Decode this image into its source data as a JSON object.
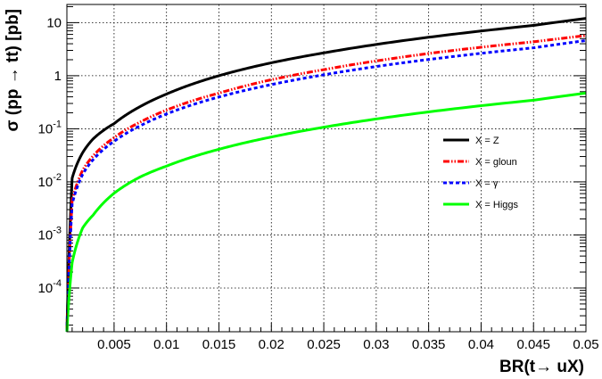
{
  "chart_data": {
    "type": "line",
    "title": "",
    "xlabel": "BR(t→ uX)",
    "ylabel": "σ (pp → tt) [pb]",
    "xlim": [
      0.0005,
      0.05
    ],
    "ylim": [
      1.5e-05,
      22
    ],
    "yscale": "log",
    "grid": true,
    "legend_position": "right",
    "x_ticks": [
      {
        "value": 0.005,
        "label": "0.005"
      },
      {
        "value": 0.01,
        "label": "0.01"
      },
      {
        "value": 0.015,
        "label": "0.015"
      },
      {
        "value": 0.02,
        "label": "0.02"
      },
      {
        "value": 0.025,
        "label": "0.025"
      },
      {
        "value": 0.03,
        "label": "0.03"
      },
      {
        "value": 0.035,
        "label": "0.035"
      },
      {
        "value": 0.04,
        "label": "0.04"
      },
      {
        "value": 0.045,
        "label": "0.045"
      },
      {
        "value": 0.05,
        "label": "0.05"
      }
    ],
    "y_ticks": [
      {
        "value": 0.0001,
        "base": "10",
        "exp": "-4"
      },
      {
        "value": 0.001,
        "base": "10",
        "exp": "-3"
      },
      {
        "value": 0.01,
        "base": "10",
        "exp": "-2"
      },
      {
        "value": 0.1,
        "base": "10",
        "exp": "-1"
      },
      {
        "value": 1,
        "base": "1",
        "exp": ""
      },
      {
        "value": 10,
        "base": "10",
        "exp": ""
      }
    ],
    "x": [
      0.0005,
      0.001,
      0.002,
      0.003,
      0.005,
      0.0075,
      0.01,
      0.015,
      0.02,
      0.025,
      0.03,
      0.035,
      0.04,
      0.045,
      0.05
    ],
    "series": [
      {
        "name": "X = Z",
        "color": "#000000",
        "style": "solid",
        "values": [
          1.5e-05,
          0.0117,
          0.0354,
          0.0644,
          0.125,
          0.263,
          0.451,
          1.0,
          1.75,
          2.69,
          3.88,
          5.3,
          6.95,
          8.87,
          12.0
        ]
      },
      {
        "name": "X = gloun",
        "color": "#ff0000",
        "style": "dashdot",
        "values": [
          1.5e-05,
          0.0045,
          0.0165,
          0.0308,
          0.068,
          0.134,
          0.225,
          0.47,
          0.84,
          1.3,
          1.9,
          2.62,
          3.44,
          4.35,
          5.7
        ]
      },
      {
        "name": "X = γ",
        "color": "#0000ff",
        "style": "dashed",
        "values": [
          1.5e-05,
          0.0038,
          0.0138,
          0.0262,
          0.058,
          0.114,
          0.19,
          0.397,
          0.68,
          1.04,
          1.49,
          2.02,
          2.64,
          3.35,
          4.6
        ]
      },
      {
        "name": "X = Higgs",
        "color": "#00ff00",
        "style": "solid",
        "values": [
          1.5e-05,
          0.0003,
          0.00135,
          0.00236,
          0.0061,
          0.0124,
          0.0198,
          0.0411,
          0.07,
          0.107,
          0.153,
          0.208,
          0.272,
          0.345,
          0.47
        ]
      }
    ]
  }
}
